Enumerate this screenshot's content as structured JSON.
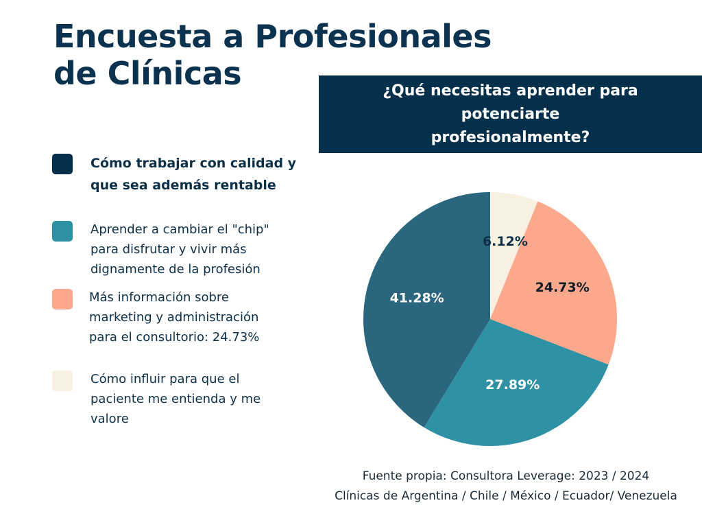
{
  "title": [
    "Encuesta a Profesionales",
    "de Clínicas"
  ],
  "question": [
    "¿Qué necesitas aprender para potenciarte",
    "profesionalmente?"
  ],
  "legend": [
    {
      "text": "Cómo trabajar con calidad y que sea además rentable",
      "color": "#05304c",
      "bold": true
    },
    {
      "text": "Aprender a cambiar el \"chip\" para disfrutar y vivir más dignamente de la profesión",
      "color": "#2e91a4",
      "bold": false
    },
    {
      "text": "Más información sobre marketing y administración para el consultorio: 24.73%",
      "color": "#fba88c",
      "bold": false
    },
    {
      "text": "Cómo influir para que el paciente me entienda y me valore",
      "color": "#f8f0e0",
      "bold": false
    }
  ],
  "chart_data": {
    "type": "pie",
    "title": "¿Qué necesitas aprender para potenciarte profesionalmente?",
    "slices": [
      {
        "label": "6.12%",
        "value": 6.12,
        "color": "#f8f0e0",
        "text_color": "#0d3049"
      },
      {
        "label": "24.73%",
        "value": 24.73,
        "color": "#fba88c",
        "text_color": "#0d1b24"
      },
      {
        "label": "27.89%",
        "value": 27.89,
        "color": "#2e91a4",
        "text_color": "#ffffff"
      },
      {
        "label": "41.28%",
        "value": 41.28,
        "color": "#2b667f",
        "text_color": "#ffffff"
      }
    ],
    "start_angle_deg": 0,
    "direction": "clockwise",
    "legend_position": "left"
  },
  "source": [
    "Fuente propia: Consultora Leverage: 2023 / 2024",
    "Clínicas de Argentina / Chile / México / Ecuador/ Venezuela"
  ]
}
